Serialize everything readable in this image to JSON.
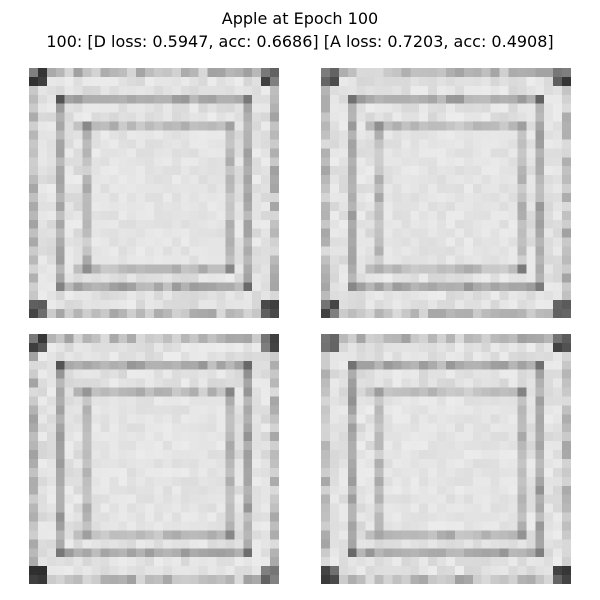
{
  "figure": {
    "title_line1": "Apple at Epoch 100",
    "title_line2": "100: [D loss: 0.5947, acc: 0.6686]  [A loss: 0.7203, acc: 0.4908]"
  },
  "images": [
    {
      "label": "generated-sample-1",
      "colormap": "grayscale"
    },
    {
      "label": "generated-sample-2",
      "colormap": "grayscale"
    },
    {
      "label": "generated-sample-3",
      "colormap": "grayscale"
    },
    {
      "label": "generated-sample-4",
      "colormap": "grayscale"
    }
  ]
}
